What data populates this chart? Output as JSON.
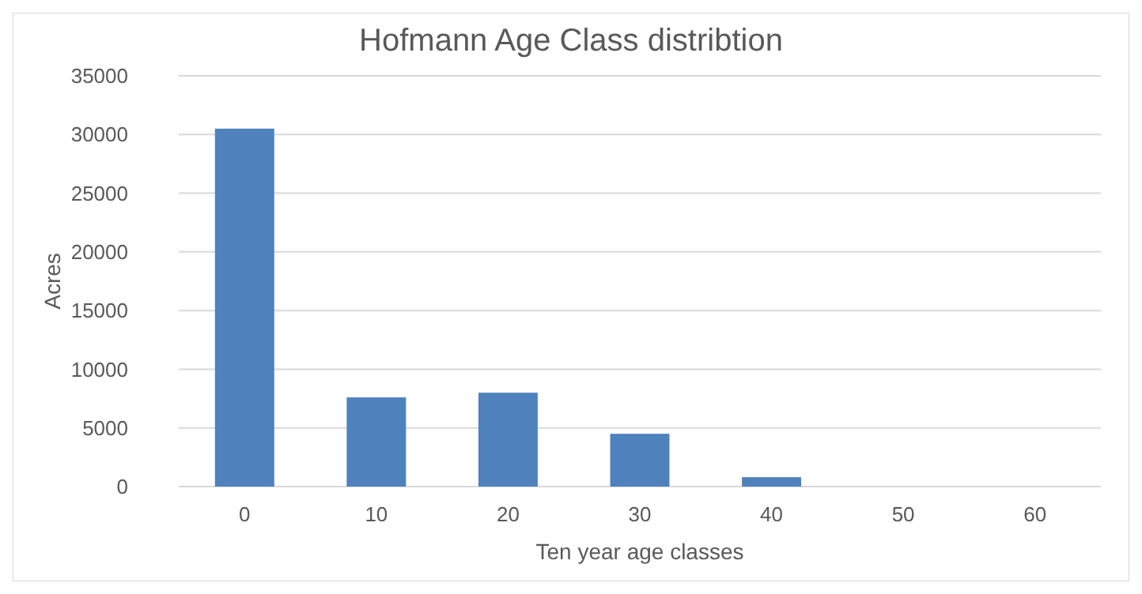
{
  "chart_data": {
    "type": "bar",
    "title": "Hofmann Age Class distribtion",
    "xlabel": "Ten year age classes",
    "ylabel": "Acres",
    "categories": [
      "0",
      "10",
      "20",
      "30",
      "40",
      "50",
      "60"
    ],
    "values": [
      30500,
      7600,
      8000,
      4500,
      800,
      null,
      null
    ],
    "color": "#4f81bd",
    "ylim": [
      0,
      35000
    ],
    "yticks": [
      0,
      5000,
      10000,
      15000,
      20000,
      25000,
      30000,
      35000
    ],
    "grid": "y"
  }
}
